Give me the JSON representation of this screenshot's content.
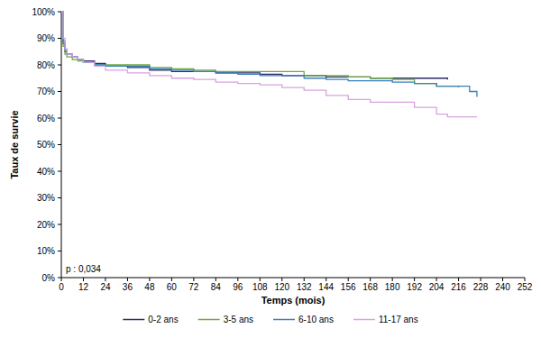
{
  "chart_data": {
    "type": "line",
    "x_label": "Temps (mois)",
    "y_label": "Taux de survie",
    "annotation": "p : 0,034",
    "x": [
      0,
      1,
      2,
      3,
      6,
      9,
      12,
      18,
      24,
      36,
      48,
      60,
      72,
      84,
      96,
      108,
      120,
      132,
      144,
      156,
      168,
      180,
      192,
      204,
      210,
      216,
      222,
      226
    ],
    "series": [
      {
        "name": "0-2 ans",
        "color": "#2b2b6b",
        "line_style": "step",
        "values": [
          100,
          88,
          85,
          84,
          83,
          82,
          81.5,
          80.5,
          79.5,
          79,
          78,
          77.5,
          77.5,
          77,
          77,
          76.5,
          76,
          76,
          75.5,
          75.5,
          75,
          75,
          75,
          75,
          74.5,
          null,
          null,
          null
        ]
      },
      {
        "name": "3-5 ans",
        "color": "#6aaa3a",
        "line_style": "step",
        "values": [
          100,
          87,
          84,
          83,
          82,
          81.5,
          81,
          80,
          80,
          80,
          79,
          78.5,
          78,
          77.5,
          77.5,
          77.5,
          77.5,
          76,
          76,
          75.5,
          75,
          74.5,
          73,
          72,
          72,
          71.5,
          null,
          null
        ]
      },
      {
        "name": "6-10 ans",
        "color": "#3a7fc1",
        "line_style": "step",
        "values": [
          100,
          89,
          86,
          84,
          83,
          82,
          81,
          80,
          79.5,
          79.5,
          78.5,
          78,
          77.5,
          77,
          76.5,
          76,
          76,
          75,
          74.5,
          74,
          74,
          73.5,
          73,
          72,
          72,
          72,
          70,
          68
        ]
      },
      {
        "name": "11-17 ans",
        "color": "#d8a2e0",
        "line_style": "step",
        "values": [
          100,
          90,
          86,
          84,
          83,
          82,
          81,
          79.5,
          78,
          77,
          76,
          75,
          74.5,
          73.5,
          73,
          72.5,
          71.5,
          70.5,
          68.5,
          67,
          66,
          66,
          64,
          61.5,
          60.5,
          60.5,
          60.5,
          60.5
        ]
      }
    ],
    "xlim": [
      0,
      252
    ],
    "xticks": [
      0,
      12,
      24,
      36,
      48,
      60,
      72,
      84,
      96,
      108,
      120,
      132,
      144,
      156,
      168,
      180,
      192,
      204,
      216,
      228,
      240,
      252
    ],
    "ylim": [
      0,
      100
    ],
    "yticks": [
      {
        "value": 0,
        "label": "0%"
      },
      {
        "value": 10,
        "label": "10%"
      },
      {
        "value": 20,
        "label": "20%"
      },
      {
        "value": 30,
        "label": "30%"
      },
      {
        "value": 40,
        "label": "40%"
      },
      {
        "value": 50,
        "label": "50%"
      },
      {
        "value": 60,
        "label": "60%"
      },
      {
        "value": 70,
        "label": "70%"
      },
      {
        "value": 80,
        "label": "80%"
      },
      {
        "value": 90,
        "label": "90%"
      },
      {
        "value": 100,
        "label": "100%"
      }
    ],
    "grid": false,
    "legend": "bottom"
  }
}
